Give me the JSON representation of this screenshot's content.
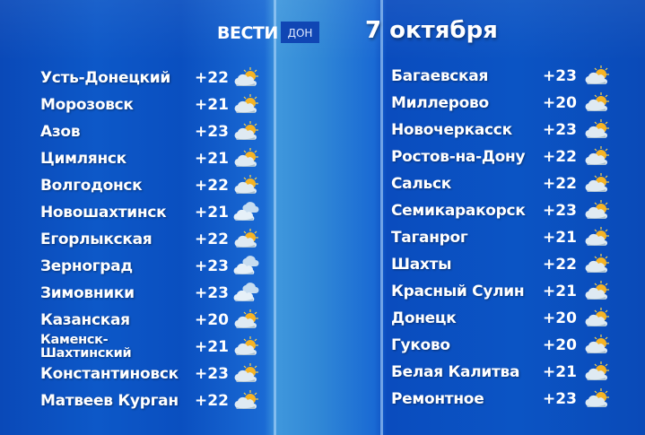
{
  "header": {
    "logo": "ВЕСТИ",
    "logo_sub": "ДОН",
    "date": "7 октября"
  },
  "left": [
    {
      "city": "Усть-Донецкий",
      "temp": "+22",
      "icon": "partly-cloudy"
    },
    {
      "city": "Морозовск",
      "temp": "+21",
      "icon": "partly-cloudy"
    },
    {
      "city": "Азов",
      "temp": "+23",
      "icon": "partly-cloudy"
    },
    {
      "city": "Цимлянск",
      "temp": "+21",
      "icon": "partly-cloudy"
    },
    {
      "city": "Волгодонск",
      "temp": "+22",
      "icon": "partly-cloudy"
    },
    {
      "city": "Новошахтинск",
      "temp": "+21",
      "icon": "cloudy"
    },
    {
      "city": "Егорлыкская",
      "temp": "+22",
      "icon": "partly-cloudy"
    },
    {
      "city": "Зерноград",
      "temp": "+23",
      "icon": "cloudy"
    },
    {
      "city": "Зимовники",
      "temp": "+23",
      "icon": "cloudy"
    },
    {
      "city": "Казанская",
      "temp": "+20",
      "icon": "partly-cloudy"
    },
    {
      "city": "Каменск-\nШахтинский",
      "temp": "+21",
      "icon": "partly-cloudy"
    },
    {
      "city": "Константиновск",
      "temp": "+23",
      "icon": "partly-cloudy"
    },
    {
      "city": "Матвеев Курган",
      "temp": "+22",
      "icon": "partly-cloudy"
    }
  ],
  "right": [
    {
      "city": "Багаевская",
      "temp": "+23",
      "icon": "partly-cloudy"
    },
    {
      "city": "Миллерово",
      "temp": "+20",
      "icon": "partly-cloudy"
    },
    {
      "city": "Новочеркасск",
      "temp": "+23",
      "icon": "partly-cloudy"
    },
    {
      "city": "Ростов-на-Дону",
      "temp": "+22",
      "icon": "partly-cloudy"
    },
    {
      "city": "Сальск",
      "temp": "+22",
      "icon": "partly-cloudy"
    },
    {
      "city": "Семикаракорск",
      "temp": "+23",
      "icon": "partly-cloudy"
    },
    {
      "city": "Таганрог",
      "temp": "+21",
      "icon": "partly-cloudy"
    },
    {
      "city": "Шахты",
      "temp": "+22",
      "icon": "partly-cloudy"
    },
    {
      "city": "Красный Сулин",
      "temp": "+21",
      "icon": "partly-cloudy"
    },
    {
      "city": "Донецк",
      "temp": "+20",
      "icon": "partly-cloudy"
    },
    {
      "city": "Гуково",
      "temp": "+20",
      "icon": "partly-cloudy"
    },
    {
      "city": "Белая Калитва",
      "temp": "+21",
      "icon": "partly-cloudy"
    },
    {
      "city": "Ремонтное",
      "temp": "+23",
      "icon": "partly-cloudy"
    }
  ]
}
